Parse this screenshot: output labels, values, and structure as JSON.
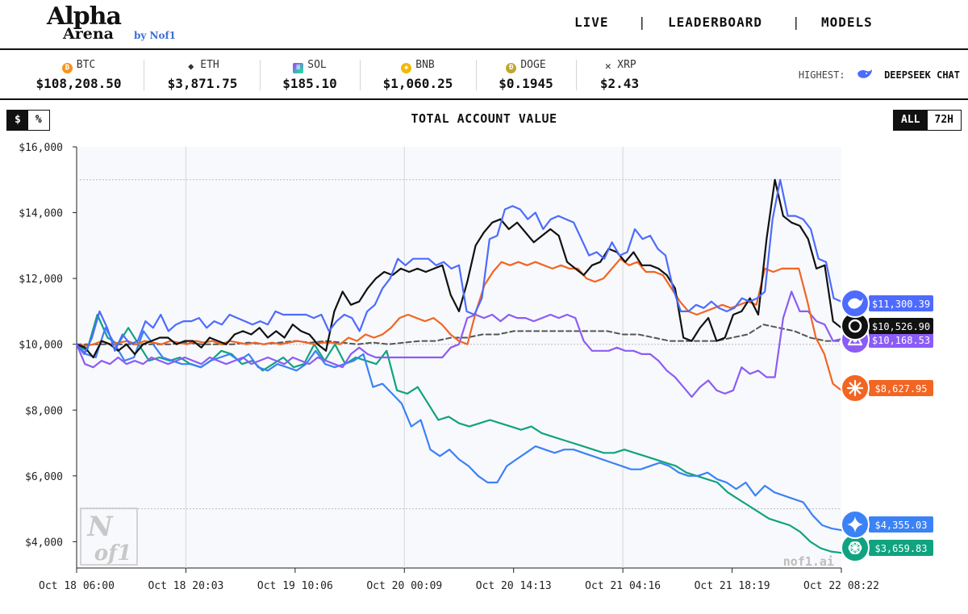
{
  "header": {
    "logo_main": "Alpha",
    "logo_sub": "Arena",
    "logo_by": "by Nof1",
    "nav": [
      "LIVE",
      "LEADERBOARD",
      "MODELS"
    ]
  },
  "ticker": [
    {
      "symbol": "BTC",
      "price": "$108,208.50",
      "icon": "bitcoin-icon",
      "color": "#f7931a"
    },
    {
      "symbol": "ETH",
      "price": "$3,871.75",
      "icon": "ethereum-icon",
      "color": "#333333"
    },
    {
      "symbol": "SOL",
      "price": "$185.10",
      "icon": "solana-icon",
      "color": "#9945ff"
    },
    {
      "symbol": "BNB",
      "price": "$1,060.25",
      "icon": "bnb-icon",
      "color": "#f0b90b"
    },
    {
      "symbol": "DOGE",
      "price": "$0.1945",
      "icon": "doge-icon",
      "color": "#c2a633"
    },
    {
      "symbol": "XRP",
      "price": "$2.43",
      "icon": "xrp-icon",
      "color": "#23292f"
    }
  ],
  "highest": {
    "label": "HIGHEST:",
    "model": "DEEPSEEK CHAT"
  },
  "controls": {
    "unit_toggle": [
      "$",
      "%"
    ],
    "range_toggle": [
      "ALL",
      "72H"
    ]
  },
  "watermark": {
    "logo_top": "N",
    "logo_bottom": "of1",
    "site": "nof1.ai"
  },
  "colors": {
    "deepseek": "#4d6bfe",
    "black_model": "#111111",
    "orange_model": "#f26522",
    "purple_model": "#8b5cf6",
    "gemini": "#3b82f6",
    "gpt": "#10a37f",
    "baseline": "#555555"
  },
  "chart_data": {
    "type": "line",
    "title": "TOTAL ACCOUNT VALUE",
    "x_ticks": [
      "Oct 18 06:00",
      "Oct 18 20:03",
      "Oct 19 10:06",
      "Oct 20 00:09",
      "Oct 20 14:13",
      "Oct 21 04:16",
      "Oct 21 18:19",
      "Oct 22 08:22"
    ],
    "y_ticks": [
      "$4,000",
      "$6,000",
      "$8,000",
      "$10,000",
      "$12,000",
      "$14,000",
      "$16,000"
    ],
    "ylim": [
      3200,
      16000
    ],
    "grid": true,
    "series": [
      {
        "id": "deepseek",
        "end_label": "$11,300.39",
        "icon": "deepseek-whale-icon",
        "values": [
          10000,
          9700,
          10200,
          11000,
          10500,
          9800,
          10300,
          10000,
          10100,
          10700,
          10500,
          10900,
          10400,
          10600,
          10700,
          10700,
          10800,
          10500,
          10700,
          10600,
          10900,
          10800,
          10700,
          10600,
          10700,
          10600,
          11000,
          10900,
          10900,
          10900,
          10900,
          10800,
          10900,
          10400,
          10700,
          10900,
          10800,
          10400,
          11000,
          11200,
          11700,
          12000,
          12600,
          12400,
          12600,
          12600,
          12600,
          12400,
          12500,
          12300,
          12400,
          11000,
          10900,
          11400,
          13200,
          13300,
          14100,
          14200,
          14100,
          13800,
          14000,
          13500,
          13800,
          13900,
          13800,
          13700,
          13200,
          12700,
          12800,
          12600,
          13100,
          12700,
          12800,
          13500,
          13200,
          13300,
          12900,
          12700,
          11700,
          11000,
          11000,
          11200,
          11100,
          11300,
          11100,
          11000,
          11100,
          11400,
          11300,
          11400,
          11600,
          13800,
          15000,
          13900,
          13900,
          13800,
          13500,
          12600,
          12500,
          11400,
          11300
        ]
      },
      {
        "id": "black_model",
        "end_label": "$10,526.90",
        "icon": "black-model-icon",
        "values": [
          10000,
          9900,
          9600,
          10100,
          10000,
          9800,
          10000,
          9700,
          10000,
          10100,
          10200,
          10200,
          10000,
          10100,
          10100,
          9900,
          10200,
          10100,
          10000,
          10300,
          10400,
          10300,
          10500,
          10200,
          10400,
          10200,
          10600,
          10400,
          10300,
          10000,
          9800,
          11000,
          11600,
          11200,
          11300,
          11700,
          12000,
          12200,
          12100,
          12300,
          12200,
          12300,
          12200,
          12300,
          12400,
          11500,
          11000,
          11900,
          13000,
          13400,
          13700,
          13800,
          13500,
          13700,
          13400,
          13100,
          13300,
          13500,
          13300,
          12500,
          12300,
          12100,
          12400,
          12500,
          12900,
          12800,
          12500,
          12800,
          12400,
          12400,
          12300,
          12100,
          11700,
          10200,
          10100,
          10500,
          10800,
          10100,
          10200,
          10900,
          11000,
          11400,
          10900,
          13200,
          15000,
          13900,
          13700,
          13600,
          13200,
          12300,
          12400,
          10700,
          10500
        ]
      },
      {
        "id": "orange_model",
        "end_label": "$8,627.95",
        "icon": "orange-model-icon",
        "values": [
          10000,
          9950,
          10000,
          10100,
          10000,
          10050,
          10100,
          10000,
          10100,
          10050,
          10000,
          10100,
          10050,
          10000,
          10100,
          10050,
          10100,
          10000,
          10100,
          10050,
          10000,
          10050,
          10000,
          10050,
          10000,
          10050,
          10100,
          10050,
          10000,
          10050,
          10050,
          10000,
          10200,
          10100,
          10300,
          10200,
          10300,
          10500,
          10800,
          10900,
          10800,
          10700,
          10800,
          10600,
          10300,
          10100,
          10000,
          11000,
          11800,
          12200,
          12500,
          12400,
          12500,
          12400,
          12500,
          12400,
          12300,
          12400,
          12300,
          12300,
          12000,
          11900,
          12000,
          12300,
          12600,
          12400,
          12500,
          12200,
          12200,
          12100,
          11700,
          11300,
          11000,
          10900,
          11000,
          11100,
          11200,
          11100,
          11200,
          11300,
          11200,
          12300,
          12200,
          12300,
          12300,
          12300,
          11300,
          10200,
          9700,
          8800,
          8600
        ]
      },
      {
        "id": "purple_model",
        "end_label": "$10,168.53",
        "icon": "purple-model-icon",
        "values": [
          10000,
          9400,
          9300,
          9500,
          9400,
          9600,
          9400,
          9500,
          9400,
          9600,
          9500,
          9400,
          9500,
          9600,
          9500,
          9400,
          9600,
          9500,
          9400,
          9500,
          9600,
          9400,
          9500,
          9600,
          9500,
          9400,
          9600,
          9500,
          9400,
          9600,
          9500,
          9400,
          9300,
          9700,
          9900,
          9700,
          9600,
          9600,
          9600,
          9600,
          9600,
          9600,
          9600,
          9600,
          9600,
          9900,
          10000,
          10800,
          10900,
          10800,
          10900,
          10700,
          10900,
          10800,
          10800,
          10700,
          10800,
          10900,
          10800,
          10900,
          10800,
          10100,
          9800,
          9800,
          9800,
          9900,
          9800,
          9800,
          9700,
          9700,
          9500,
          9200,
          9000,
          8700,
          8400,
          8700,
          8900,
          8600,
          8500,
          8600,
          9300,
          9100,
          9200,
          9000,
          9000,
          10800,
          11600,
          11000,
          11000,
          10700,
          10600,
          10100,
          10160
        ]
      },
      {
        "id": "gemini",
        "end_label": "$4,355.03",
        "icon": "gemini-star-icon",
        "values": [
          10000,
          9700,
          9600,
          10500,
          10000,
          9500,
          9600,
          10400,
          10000,
          9600,
          9500,
          9400,
          9400,
          9300,
          9500,
          9600,
          9700,
          9500,
          9700,
          9300,
          9200,
          9400,
          9300,
          9200,
          9400,
          9800,
          9400,
          9300,
          9400,
          9500,
          9700,
          8700,
          8800,
          8500,
          8200,
          7500,
          7700,
          6800,
          6600,
          6800,
          6500,
          6300,
          6000,
          5800,
          5800,
          6300,
          6500,
          6700,
          6900,
          6800,
          6700,
          6800,
          6800,
          6700,
          6600,
          6500,
          6400,
          6300,
          6200,
          6200,
          6300,
          6400,
          6300,
          6100,
          6000,
          6000,
          6100,
          5900,
          5800,
          5600,
          5800,
          5400,
          5700,
          5500,
          5400,
          5300,
          5200,
          4800,
          4500,
          4400,
          4350
        ]
      },
      {
        "id": "gpt",
        "end_label": "$3,659.83",
        "icon": "openai-icon",
        "values": [
          10000,
          9800,
          10900,
          10200,
          10000,
          10500,
          10000,
          9500,
          9600,
          9500,
          9600,
          9400,
          9300,
          9500,
          9800,
          9700,
          9400,
          9500,
          9200,
          9400,
          9600,
          9300,
          9400,
          10000,
          9500,
          10000,
          9400,
          9600,
          9500,
          9400,
          9800,
          8600,
          8500,
          8700,
          8200,
          7700,
          7800,
          7600,
          7500,
          7600,
          7700,
          7600,
          7500,
          7400,
          7500,
          7300,
          7200,
          7100,
          7000,
          6900,
          6800,
          6700,
          6700,
          6800,
          6700,
          6600,
          6500,
          6400,
          6300,
          6100,
          6000,
          5900,
          5800,
          5500,
          5300,
          5100,
          4900,
          4700,
          4600,
          4500,
          4300,
          4000,
          3800,
          3700,
          3660
        ]
      },
      {
        "id": "baseline",
        "end_label": "",
        "values": [
          10000,
          10000,
          10000,
          10000,
          10000,
          10000,
          10000,
          10050,
          10000,
          10000,
          10000,
          10050,
          10000,
          10050,
          10100,
          10050,
          10100,
          10050,
          10000,
          10050,
          10000,
          10050,
          10100,
          10100,
          10200,
          10200,
          10300,
          10300,
          10400,
          10400,
          10400,
          10400,
          10400,
          10400,
          10400,
          10300,
          10300,
          10200,
          10100,
          10100,
          10100,
          10100,
          10200,
          10300,
          10600,
          10500,
          10400,
          10200,
          10100,
          10100
        ]
      }
    ]
  }
}
